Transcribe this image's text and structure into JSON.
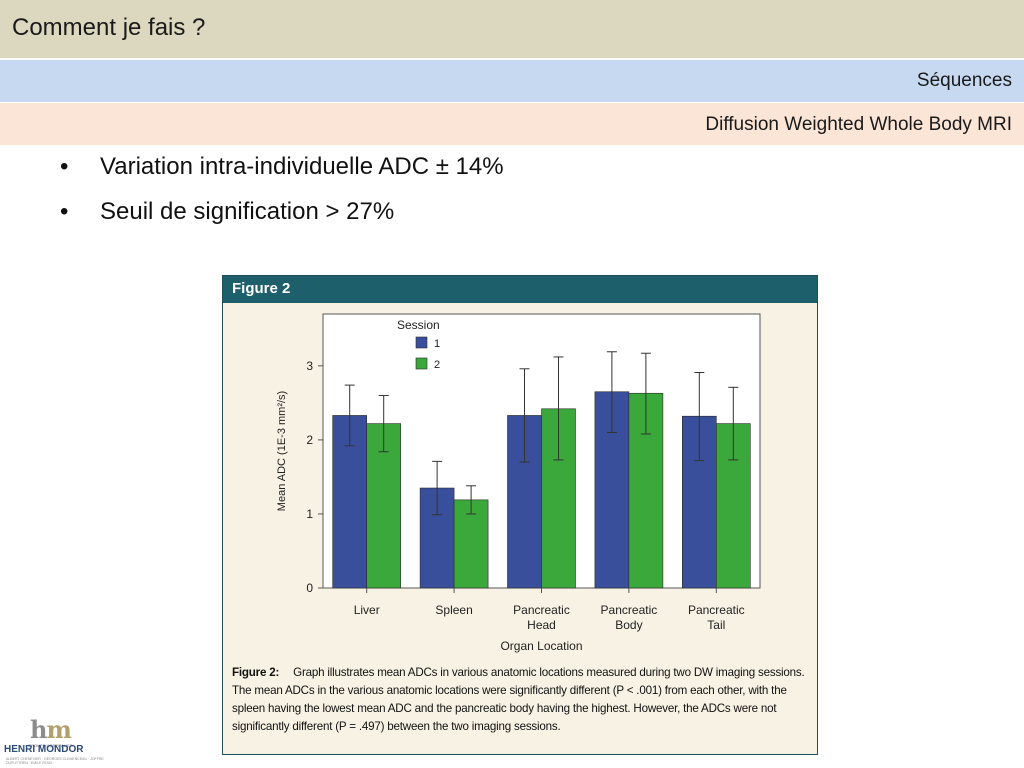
{
  "header": {
    "title": "Comment je fais ?",
    "section": "Séquences",
    "subsection": "Diffusion Weighted Whole Body MRI"
  },
  "bullets": [
    "Variation intra-individuelle ADC ± 14%",
    "Seuil de signification > 27%"
  ],
  "figure": {
    "header": "Figure 2",
    "caption_label": "Figure 2:",
    "caption_text": "Graph illustrates mean ADCs in various anatomic locations measured during two DW imaging sessions. The mean ADCs in the various anatomic locations were significantly different (P < .001) from each other, with the spleen having the lowest mean ADC and the pancreatic body having the highest. However, the ADCs were not significantly different (P = .497) between the two imaging sessions."
  },
  "chart_data": {
    "type": "bar",
    "title": "",
    "xlabel": "Organ Location",
    "ylabel": "Mean ADC (1E-3 mm²/s)",
    "ylim": [
      0,
      3.7
    ],
    "yticks": [
      0,
      1,
      2,
      3
    ],
    "categories": [
      [
        "Liver"
      ],
      [
        "Spleen"
      ],
      [
        "Pancreatic",
        "Head"
      ],
      [
        "Pancreatic",
        "Body"
      ],
      [
        "Pancreatic",
        "Tail"
      ]
    ],
    "legend_title": "Session",
    "legend_position": "top-left",
    "series": [
      {
        "name": "1",
        "color": "#3a4f9b",
        "values": [
          2.33,
          1.35,
          2.33,
          2.65,
          2.32
        ],
        "error_high": [
          2.74,
          1.71,
          2.96,
          3.19,
          2.91
        ],
        "error_low": [
          1.92,
          0.99,
          1.7,
          2.1,
          1.72
        ]
      },
      {
        "name": "2",
        "color": "#3aa83a",
        "values": [
          2.22,
          1.19,
          2.42,
          2.63,
          2.22
        ],
        "error_high": [
          2.6,
          1.38,
          3.12,
          3.17,
          2.71
        ],
        "error_low": [
          1.84,
          1.0,
          1.73,
          2.08,
          1.73
        ]
      }
    ]
  },
  "logo": {
    "letters_h": "h",
    "letters_m": "m",
    "tagline": "GROUPE HOSPITALIER",
    "name": "HENRI MONDOR",
    "hospitals": "ALBERT CHENEVIER · GEORGES CLEMENCEAU · JOFFRE DUPUYTREN · EMILE ROUX"
  }
}
